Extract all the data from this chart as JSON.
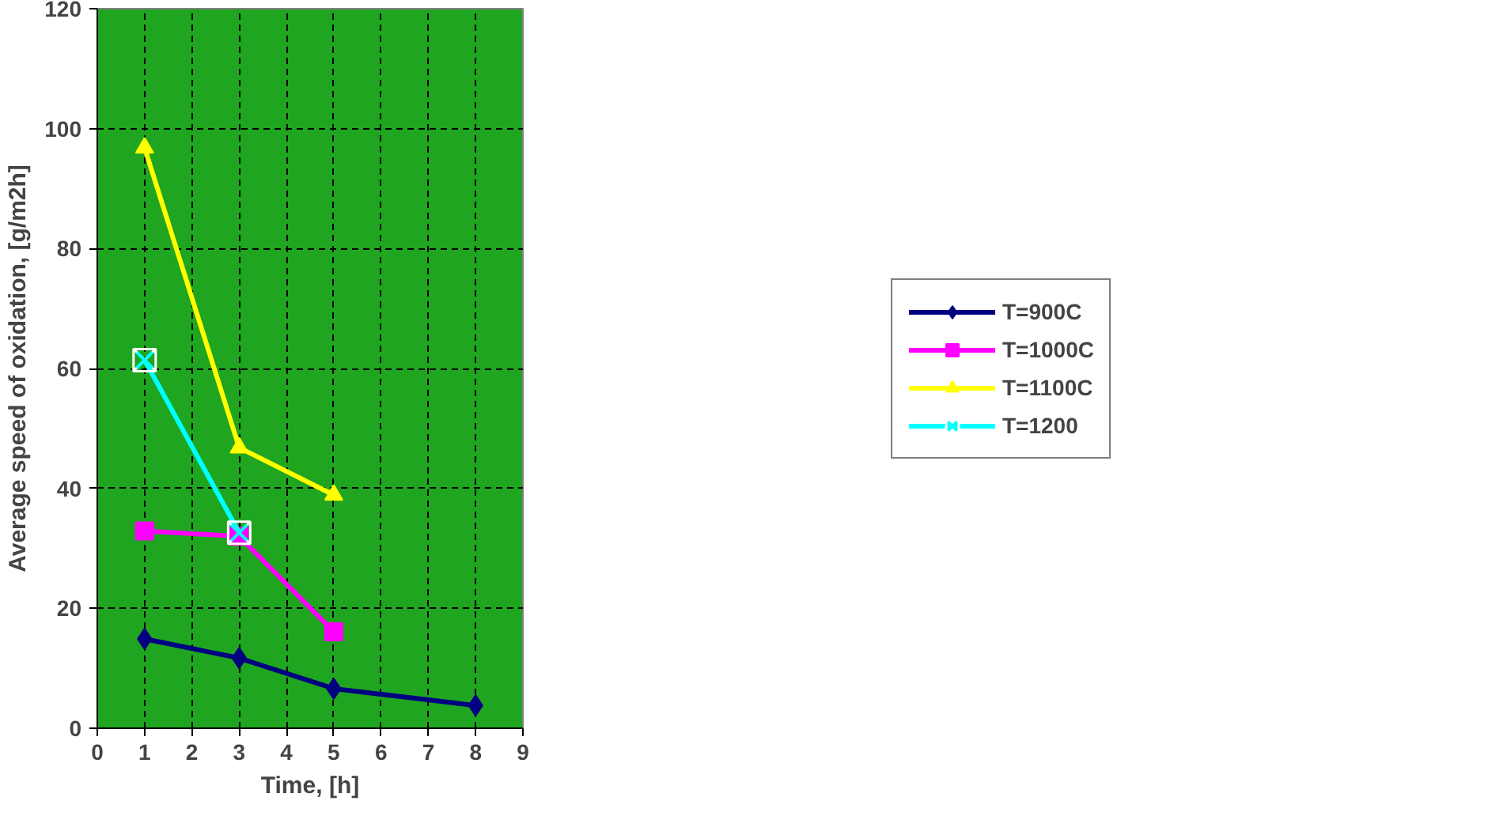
{
  "chart_data": {
    "type": "line",
    "xlabel": "Time, [h]",
    "ylabel": "Average speed of oxidation, [g/m2h]",
    "xlim": [
      0,
      9
    ],
    "xticks": [
      0,
      1,
      2,
      3,
      4,
      5,
      6,
      7,
      8,
      9
    ],
    "ylim": [
      0,
      120
    ],
    "yticks": [
      0,
      20,
      40,
      60,
      80,
      100,
      120
    ],
    "grid": true,
    "legend": "right",
    "line_style": "solid",
    "series": [
      {
        "name": "T=900C",
        "color": "#000080",
        "marker": "diamond",
        "x": [
          1,
          3,
          5,
          8
        ],
        "values": [
          14.9,
          11.7,
          6.6,
          3.8
        ]
      },
      {
        "name": "T=1000C",
        "color": "#ff00ff",
        "marker": "square",
        "x": [
          1,
          3,
          5
        ],
        "values": [
          32.9,
          32.0,
          16.1
        ]
      },
      {
        "name": "T=1100C",
        "color": "#ffff00",
        "marker": "triangle",
        "x": [
          1,
          3,
          5
        ],
        "values": [
          96.8,
          46.8,
          38.9
        ]
      },
      {
        "name": "T=1200",
        "color": "#00ffff",
        "marker": "cross",
        "x": [
          1,
          3
        ],
        "values": [
          61.4,
          32.6
        ]
      }
    ]
  }
}
